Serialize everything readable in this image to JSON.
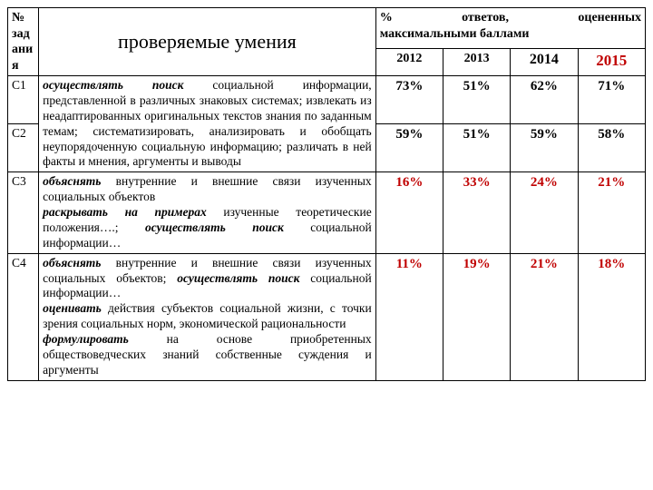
{
  "header": {
    "num_label": "№ зад ани я",
    "skills_title": "проверяемые  умения",
    "pct_label_line1": "% ответов, оцененных",
    "pct_label_line2": "максимальными баллами",
    "years": {
      "y2012": "2012",
      "y2013": "2013",
      "y2014": "2014",
      "y2015": "2015"
    }
  },
  "rows": {
    "c1": {
      "num": "С1",
      "skill_bi1": "осуществлять поиск",
      "skill_p1": " социальной информации,",
      "p2012": "73%",
      "p2013": "51%",
      "p2014": "62%",
      "p2015": "71%"
    },
    "c2": {
      "num": "С2",
      "skill": "представленной в различных знаковых системах; извлекать из неадаптированных оригинальных текстов знания по заданным темам; систематизировать, анализировать и обобщать неупорядоченную социальную информацию; различать в ней факты и мнения, аргументы и выводы",
      "p2012": "59%",
      "p2013": "51%",
      "p2014": "59%",
      "p2015": "58%"
    },
    "c3": {
      "num": "С3",
      "s_bi1": "объяснять",
      "s_p1": " внутренние и внешние связи изученных социальных объектов",
      "s_bi2": "раскрывать на примерах",
      "s_p2": " изученные теоретические положения….; ",
      "s_bi3": "осуществлять поиск",
      "s_p3": " социальной информации…",
      "p2012": "16%",
      "p2013": "33%",
      "p2014": "24%",
      "p2015": "21%"
    },
    "c4": {
      "num": "С4",
      "s_bi1": "объяснять",
      "s_p1": " внутренние и внешние связи изученных социальных объектов; ",
      "s_bi2": "осуществлять поиск",
      "s_p2": " социальной информации…",
      "s_bi3": "оценивать",
      "s_p3": " действия субъектов социальной жизни,  с точки зрения социальных норм, экономической рациональности",
      "s_bi4": "формулировать",
      "s_p4": " на основе приобретенных обществоведческих знаний собственные суждения и аргументы",
      "p2012": "11%",
      "p2013": "19%",
      "p2014": "21%",
      "p2015": "18%"
    }
  },
  "colors": {
    "accent_red": "#c00000",
    "border": "#000000",
    "bg": "#ffffff"
  }
}
